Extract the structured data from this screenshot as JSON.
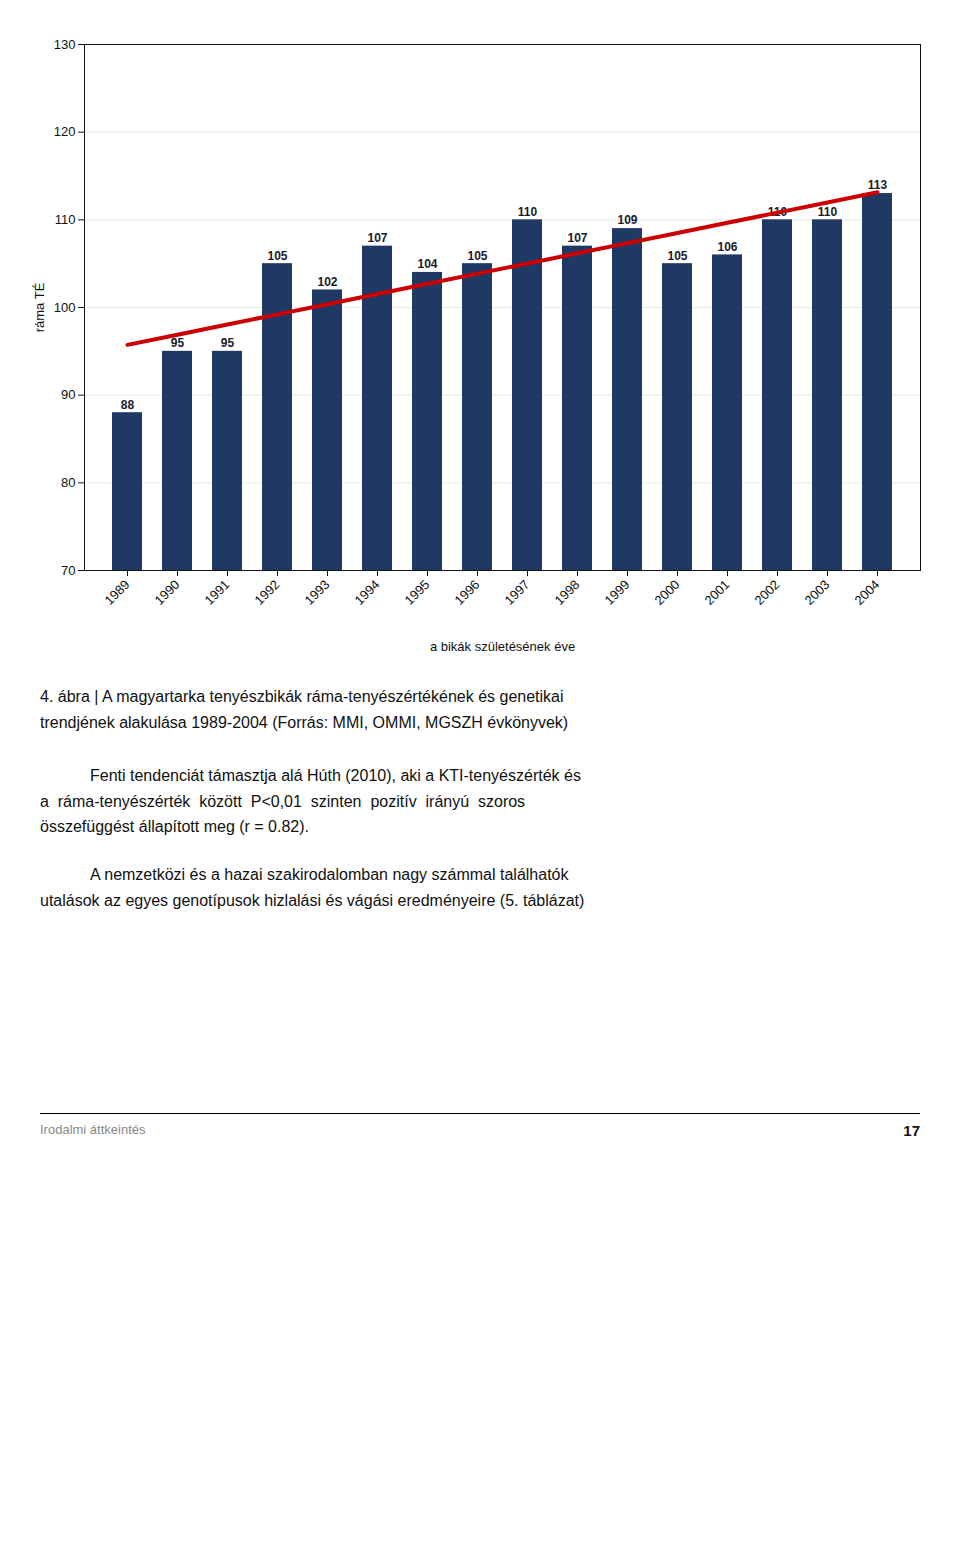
{
  "chart_data": {
    "type": "bar",
    "xlabel": "a bikák születésének éve",
    "ylabel": "ráma TÉ",
    "categories": [
      "1989",
      "1990",
      "1991",
      "1992",
      "1993",
      "1994",
      "1995",
      "1996",
      "1997",
      "1998",
      "1999",
      "2000",
      "2001",
      "2002",
      "2003",
      "2004"
    ],
    "series": [
      {
        "type": "bar",
        "color": "#1F3864",
        "values": [
          88,
          95,
          95,
          105,
          102,
          107,
          104,
          105,
          110,
          107,
          109,
          105,
          106,
          110,
          110,
          113
        ]
      },
      {
        "type": "line",
        "color": "#CC0000",
        "values": [
          95.74,
          96.9,
          98.06,
          99.22,
          100.38,
          101.54,
          102.7,
          103.86,
          105.02,
          106.18,
          107.34,
          108.5,
          109.66,
          110.82,
          111.98,
          113.14
        ]
      }
    ],
    "data_labels": true,
    "ylim": [
      70,
      130
    ],
    "yticks": [
      70,
      80,
      90,
      100,
      110,
      120,
      130
    ],
    "grid": true,
    "caption": [
      "4. ábra | A magyartarka tenyészbikák ráma-tenyészértékének és genetikai",
      "trendjének alakulása 1989-2004 (Forrás: MMI, OMMI, MGSZH évkönyvek)"
    ],
    "annotations": [
      [
        "Fenti tendenciát támasztja alá Húth (2010), aki a KTI-tenyészérték és",
        "a  ráma-tenyészérték  között  P<0,01  szinten  pozitív  irányú  szoros",
        "összefüggést állapított meg (r = 0.82)."
      ],
      [
        "A nemzetközi és a hazai szakirodalomban nagy számmal találhatók",
        "utalások az egyes genotípusok hizlalási és vágási eredményeire (5. táblázat)"
      ]
    ],
    "footer": [
      "Irodalmi áttkeintés",
      "17"
    ]
  }
}
